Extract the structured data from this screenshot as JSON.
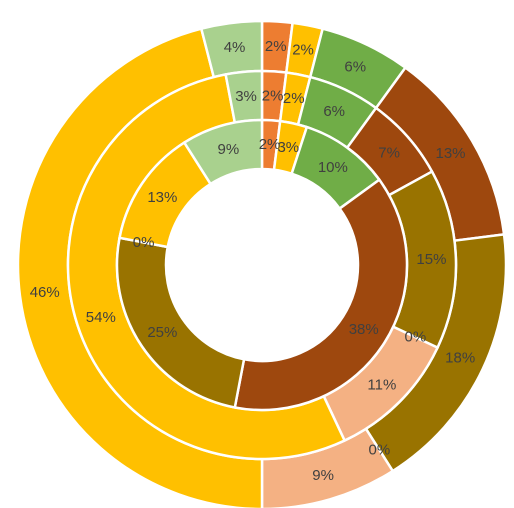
{
  "chart_data": {
    "type": "doughnut",
    "title": "",
    "legend": "none",
    "series": [
      {
        "ring": "outer",
        "values": [
          2,
          2,
          6,
          13,
          18,
          0,
          9,
          46,
          4
        ],
        "labels": [
          "2%",
          "2%",
          "6%",
          "13%",
          "18%",
          "0%",
          "9%",
          "46%",
          "4%"
        ],
        "colors": [
          "#ED7D31",
          "#FFC000",
          "#70AD47",
          "#9E480E",
          "#997300",
          "#8B8B8B",
          "#F4B183",
          "#FFC000",
          "#A9D18E"
        ]
      },
      {
        "ring": "middle",
        "values": [
          2,
          2,
          6,
          7,
          15,
          0,
          11,
          54,
          3
        ],
        "labels": [
          "2%",
          "2%",
          "6%",
          "7%",
          "15%",
          "0%",
          "11%",
          "54%",
          "3%"
        ],
        "colors": [
          "#ED7D31",
          "#FFC000",
          "#70AD47",
          "#9E480E",
          "#997300",
          "#8B8B8B",
          "#F4B183",
          "#FFC000",
          "#A9D18E"
        ]
      },
      {
        "ring": "inner",
        "values": [
          2,
          3,
          10,
          38,
          25,
          0,
          13,
          9
        ],
        "labels": [
          "2%",
          "3%",
          "10%",
          "38%",
          "25%",
          "0%",
          "13%",
          "9%"
        ],
        "colors": [
          "#ED7D31",
          "#FFC000",
          "#70AD47",
          "#9E480E",
          "#997300",
          "#8B8B8B",
          "#FFC000",
          "#A9D18E"
        ]
      }
    ]
  }
}
